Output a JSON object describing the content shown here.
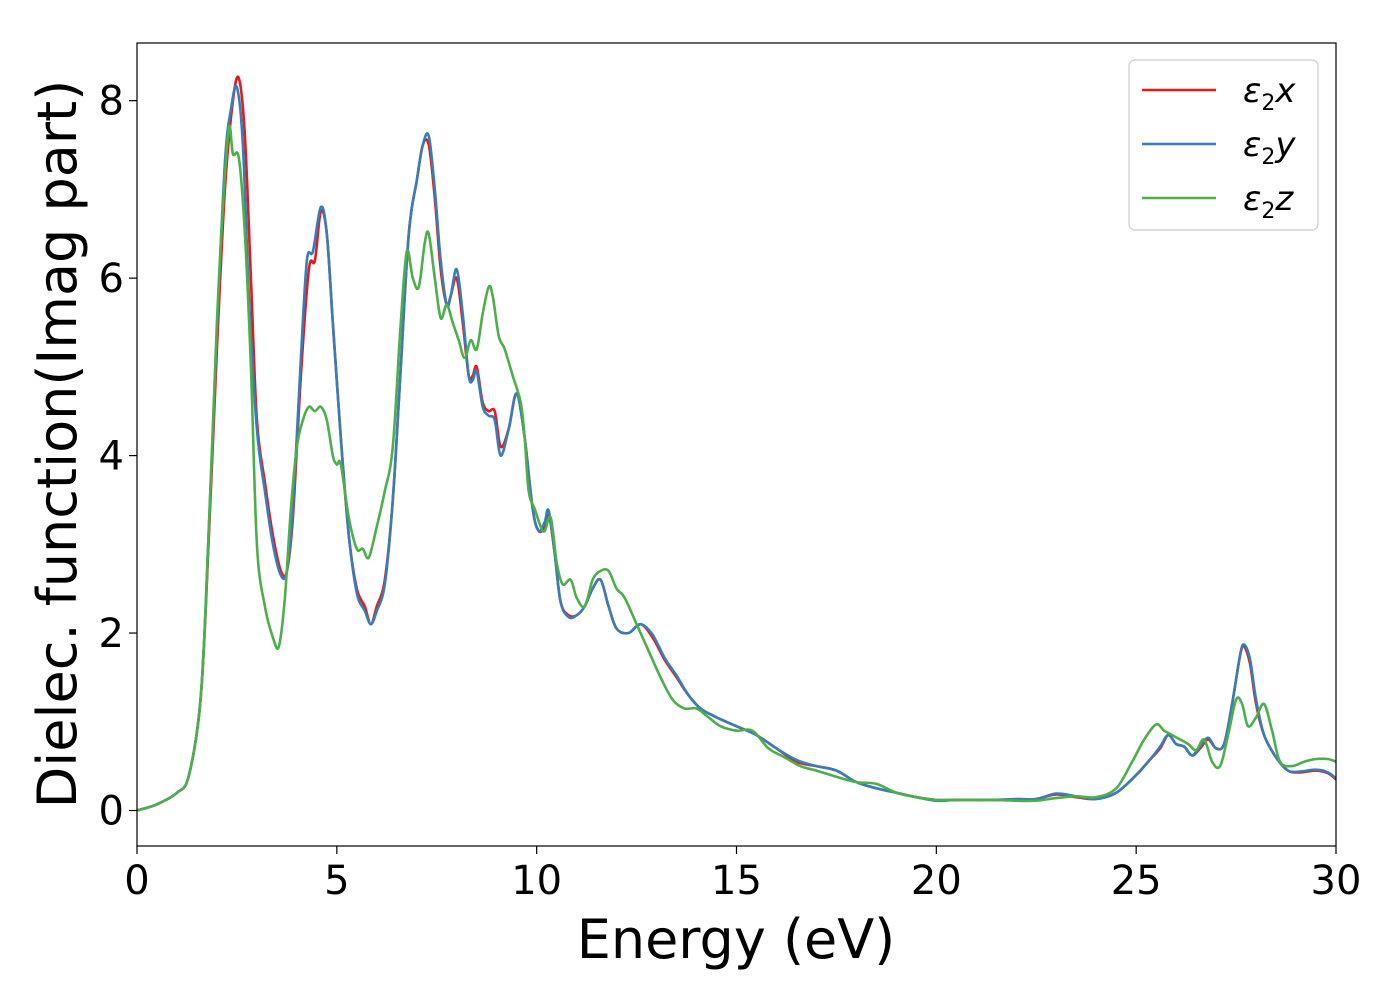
{
  "chart_data": {
    "type": "line",
    "title": "",
    "xlabel": "Energy (eV)",
    "ylabel": "Dielec. function(Imag part)",
    "xlim": [
      0,
      30
    ],
    "ylim": [
      -0.4,
      8.65
    ],
    "xticks": [
      0,
      5,
      10,
      15,
      20,
      25,
      30
    ],
    "yticks": [
      0,
      2,
      4,
      6,
      8
    ],
    "grid": false,
    "legend_position": "top-right",
    "series": [
      {
        "name": "ε2x",
        "legend_base": "ε",
        "legend_sub": "2",
        "legend_tail": "x",
        "color": "#e41a1c",
        "x": [
          0,
          0.5,
          1.0,
          1.3,
          1.6,
          1.8,
          2.0,
          2.2,
          2.4,
          2.55,
          2.7,
          2.85,
          3.0,
          3.2,
          3.4,
          3.6,
          3.75,
          3.9,
          4.1,
          4.3,
          4.45,
          4.6,
          4.75,
          4.9,
          5.1,
          5.3,
          5.5,
          5.7,
          5.85,
          6.0,
          6.2,
          6.4,
          6.6,
          6.8,
          7.0,
          7.15,
          7.3,
          7.45,
          7.6,
          7.75,
          7.85,
          8.0,
          8.15,
          8.3,
          8.4,
          8.5,
          8.65,
          8.8,
          8.95,
          9.1,
          9.3,
          9.5,
          9.7,
          9.9,
          10.05,
          10.2,
          10.3,
          10.45,
          10.6,
          10.8,
          11.0,
          11.2,
          11.4,
          11.6,
          11.8,
          12.0,
          12.3,
          12.6,
          12.9,
          13.2,
          13.5,
          13.8,
          14.1,
          14.5,
          15.0,
          15.5,
          16.0,
          16.5,
          17.0,
          17.5,
          18.0,
          18.5,
          19.0,
          19.5,
          20.0,
          20.5,
          21.0,
          21.5,
          22.0,
          22.5,
          23.0,
          23.5,
          24.0,
          24.5,
          25.0,
          25.3,
          25.6,
          25.8,
          26.0,
          26.2,
          26.4,
          26.6,
          26.8,
          27.0,
          27.2,
          27.4,
          27.6,
          27.7,
          27.85,
          28.0,
          28.2,
          28.5,
          28.8,
          29.1,
          29.5,
          29.8,
          30.0
        ],
        "y": [
          0.0,
          0.07,
          0.2,
          0.4,
          1.3,
          3.1,
          5.2,
          7.0,
          8.0,
          8.25,
          7.6,
          6.0,
          4.4,
          3.7,
          3.1,
          2.7,
          2.7,
          3.3,
          4.9,
          6.1,
          6.2,
          6.75,
          6.5,
          5.5,
          4.2,
          3.1,
          2.5,
          2.3,
          2.1,
          2.3,
          2.6,
          3.5,
          5.0,
          6.5,
          7.1,
          7.5,
          7.5,
          6.9,
          6.1,
          5.7,
          5.8,
          6.0,
          5.5,
          4.9,
          4.9,
          5.0,
          4.6,
          4.5,
          4.5,
          4.1,
          4.3,
          4.7,
          4.2,
          3.4,
          3.15,
          3.2,
          3.35,
          2.9,
          2.35,
          2.2,
          2.2,
          2.3,
          2.5,
          2.6,
          2.3,
          2.05,
          2.0,
          2.1,
          1.95,
          1.7,
          1.5,
          1.3,
          1.15,
          1.05,
          0.95,
          0.85,
          0.7,
          0.55,
          0.5,
          0.45,
          0.32,
          0.25,
          0.2,
          0.15,
          0.12,
          0.12,
          0.12,
          0.12,
          0.12,
          0.13,
          0.18,
          0.15,
          0.13,
          0.2,
          0.4,
          0.55,
          0.7,
          0.85,
          0.75,
          0.72,
          0.62,
          0.7,
          0.8,
          0.7,
          0.75,
          1.2,
          1.75,
          1.85,
          1.65,
          1.2,
          0.85,
          0.6,
          0.45,
          0.43,
          0.45,
          0.42,
          0.35
        ]
      },
      {
        "name": "ε2y",
        "legend_base": "ε",
        "legend_sub": "2",
        "legend_tail": "y",
        "color": "#377eb8",
        "x": [
          0,
          0.5,
          1.0,
          1.3,
          1.6,
          1.8,
          2.0,
          2.2,
          2.35,
          2.5,
          2.65,
          2.8,
          3.0,
          3.2,
          3.4,
          3.6,
          3.75,
          3.9,
          4.1,
          4.25,
          4.4,
          4.6,
          4.75,
          4.9,
          5.1,
          5.3,
          5.5,
          5.7,
          5.85,
          6.0,
          6.2,
          6.4,
          6.6,
          6.8,
          7.0,
          7.15,
          7.3,
          7.45,
          7.6,
          7.75,
          7.85,
          8.0,
          8.15,
          8.3,
          8.4,
          8.5,
          8.65,
          8.8,
          8.95,
          9.1,
          9.3,
          9.5,
          9.7,
          9.9,
          10.05,
          10.2,
          10.3,
          10.45,
          10.6,
          10.8,
          11.0,
          11.2,
          11.4,
          11.6,
          11.8,
          12.0,
          12.3,
          12.6,
          12.9,
          13.2,
          13.5,
          13.8,
          14.1,
          14.5,
          15.0,
          15.5,
          16.0,
          16.5,
          17.0,
          17.5,
          18.0,
          18.5,
          19.0,
          19.5,
          20.0,
          20.5,
          21.0,
          21.5,
          22.0,
          22.5,
          23.0,
          23.5,
          24.0,
          24.5,
          25.0,
          25.3,
          25.6,
          25.8,
          26.0,
          26.2,
          26.4,
          26.6,
          26.8,
          27.0,
          27.2,
          27.4,
          27.6,
          27.7,
          27.85,
          28.0,
          28.2,
          28.5,
          28.8,
          29.1,
          29.5,
          29.8,
          30.0
        ],
        "y": [
          0.0,
          0.07,
          0.2,
          0.4,
          1.3,
          3.2,
          5.4,
          7.3,
          7.9,
          8.15,
          7.5,
          5.8,
          4.3,
          3.6,
          3.0,
          2.65,
          2.7,
          3.4,
          5.1,
          6.2,
          6.3,
          6.8,
          6.5,
          5.5,
          4.2,
          3.1,
          2.45,
          2.25,
          2.1,
          2.25,
          2.55,
          3.5,
          5.0,
          6.5,
          7.1,
          7.5,
          7.6,
          7.0,
          6.2,
          5.7,
          5.8,
          6.1,
          5.6,
          4.9,
          4.85,
          4.95,
          4.55,
          4.45,
          4.4,
          4.0,
          4.3,
          4.7,
          4.2,
          3.4,
          3.15,
          3.25,
          3.38,
          2.9,
          2.35,
          2.18,
          2.2,
          2.3,
          2.5,
          2.6,
          2.3,
          2.05,
          2.0,
          2.1,
          1.98,
          1.72,
          1.52,
          1.3,
          1.15,
          1.05,
          0.95,
          0.85,
          0.7,
          0.57,
          0.5,
          0.45,
          0.32,
          0.25,
          0.2,
          0.15,
          0.11,
          0.12,
          0.12,
          0.12,
          0.13,
          0.13,
          0.19,
          0.16,
          0.13,
          0.2,
          0.4,
          0.55,
          0.72,
          0.85,
          0.75,
          0.72,
          0.62,
          0.72,
          0.82,
          0.7,
          0.75,
          1.2,
          1.75,
          1.87,
          1.7,
          1.25,
          0.85,
          0.6,
          0.45,
          0.44,
          0.46,
          0.43,
          0.36
        ]
      },
      {
        "name": "ε2z",
        "legend_base": "ε",
        "legend_sub": "2",
        "legend_tail": "z",
        "color": "#4daf4a",
        "x": [
          0,
          0.5,
          1.0,
          1.3,
          1.6,
          1.8,
          2.0,
          2.15,
          2.3,
          2.4,
          2.55,
          2.7,
          2.85,
          3.0,
          3.2,
          3.4,
          3.55,
          3.7,
          3.85,
          4.0,
          4.15,
          4.3,
          4.45,
          4.6,
          4.75,
          4.9,
          5.0,
          5.1,
          5.3,
          5.5,
          5.65,
          5.8,
          6.0,
          6.2,
          6.4,
          6.6,
          6.75,
          6.9,
          7.05,
          7.2,
          7.3,
          7.45,
          7.6,
          7.75,
          7.9,
          8.05,
          8.2,
          8.35,
          8.5,
          8.65,
          8.8,
          8.9,
          9.05,
          9.2,
          9.4,
          9.6,
          9.7,
          9.8,
          9.95,
          10.1,
          10.2,
          10.35,
          10.5,
          10.65,
          10.85,
          11.0,
          11.2,
          11.4,
          11.6,
          11.8,
          12.0,
          12.2,
          12.5,
          12.8,
          13.1,
          13.4,
          13.7,
          14.0,
          14.3,
          14.6,
          15.0,
          15.4,
          15.8,
          16.2,
          16.6,
          17.0,
          17.5,
          18.0,
          18.5,
          19.0,
          19.5,
          20.0,
          20.5,
          21.0,
          21.5,
          22.0,
          22.5,
          23.0,
          23.5,
          24.0,
          24.5,
          24.9,
          25.2,
          25.5,
          25.7,
          25.9,
          26.1,
          26.3,
          26.5,
          26.7,
          26.9,
          27.1,
          27.3,
          27.5,
          27.65,
          27.8,
          28.0,
          28.2,
          28.4,
          28.6,
          28.9,
          29.2,
          29.5,
          29.8,
          30.0
        ],
        "y": [
          0.0,
          0.07,
          0.2,
          0.4,
          1.3,
          3.2,
          5.5,
          6.8,
          7.7,
          7.4,
          7.35,
          6.5,
          5.0,
          3.0,
          2.3,
          1.95,
          1.85,
          2.4,
          3.4,
          4.1,
          4.4,
          4.55,
          4.5,
          4.55,
          4.4,
          4.0,
          3.9,
          3.9,
          3.3,
          2.95,
          2.95,
          2.85,
          3.2,
          3.6,
          4.1,
          5.5,
          6.3,
          6.0,
          5.9,
          6.4,
          6.5,
          6.0,
          5.55,
          5.7,
          5.5,
          5.3,
          5.1,
          5.3,
          5.2,
          5.6,
          5.9,
          5.8,
          5.35,
          5.2,
          4.9,
          4.6,
          4.2,
          3.6,
          3.4,
          3.2,
          3.15,
          3.3,
          2.8,
          2.55,
          2.6,
          2.4,
          2.3,
          2.6,
          2.7,
          2.7,
          2.5,
          2.4,
          2.1,
          1.8,
          1.5,
          1.25,
          1.15,
          1.15,
          1.05,
          0.95,
          0.9,
          0.9,
          0.7,
          0.6,
          0.5,
          0.45,
          0.38,
          0.32,
          0.3,
          0.2,
          0.15,
          0.12,
          0.12,
          0.12,
          0.12,
          0.11,
          0.11,
          0.14,
          0.16,
          0.15,
          0.25,
          0.55,
          0.8,
          0.97,
          0.9,
          0.85,
          0.8,
          0.75,
          0.68,
          0.8,
          0.55,
          0.5,
          0.85,
          1.25,
          1.2,
          0.95,
          1.05,
          1.2,
          0.9,
          0.55,
          0.5,
          0.55,
          0.58,
          0.58,
          0.55
        ]
      }
    ]
  }
}
